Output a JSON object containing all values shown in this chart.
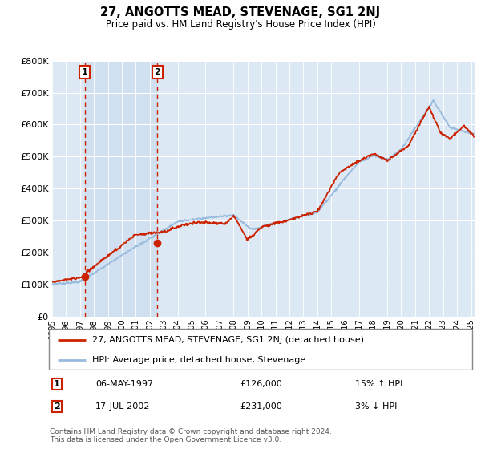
{
  "title": "27, ANGOTTS MEAD, STEVENAGE, SG1 2NJ",
  "subtitle": "Price paid vs. HM Land Registry's House Price Index (HPI)",
  "background_color": "#dce9f5",
  "x_start": 1995.0,
  "x_end": 2025.3,
  "y_min": 0,
  "y_max": 800000,
  "sale1_x": 1997.35,
  "sale1_y": 126000,
  "sale2_x": 2002.54,
  "sale2_y": 231000,
  "legend_line1": "27, ANGOTTS MEAD, STEVENAGE, SG1 2NJ (detached house)",
  "legend_line2": "HPI: Average price, detached house, Stevenage",
  "table_rows": [
    {
      "num": "1",
      "date": "06-MAY-1997",
      "price": "£126,000",
      "hpi": "15% ↑ HPI"
    },
    {
      "num": "2",
      "date": "17-JUL-2002",
      "price": "£231,000",
      "hpi": "3% ↓ HPI"
    }
  ],
  "footer": "Contains HM Land Registry data © Crown copyright and database right 2024.\nThis data is licensed under the Open Government Licence v3.0.",
  "hpi_color": "#99bbdd",
  "sale_color": "#cc2200",
  "dashed_color": "#cc2200",
  "shade_color": "#ccddf0",
  "yticks": [
    0,
    100000,
    200000,
    300000,
    400000,
    500000,
    600000,
    700000,
    800000
  ],
  "ytick_labels": [
    "£0",
    "£100K",
    "£200K",
    "£300K",
    "£400K",
    "£500K",
    "£600K",
    "£700K",
    "£800K"
  ],
  "xtick_years": [
    1995,
    1996,
    1997,
    1998,
    1999,
    2000,
    2001,
    2002,
    2003,
    2004,
    2005,
    2006,
    2007,
    2008,
    2009,
    2010,
    2011,
    2012,
    2013,
    2014,
    2015,
    2016,
    2017,
    2018,
    2019,
    2020,
    2021,
    2022,
    2023,
    2024,
    2025
  ]
}
